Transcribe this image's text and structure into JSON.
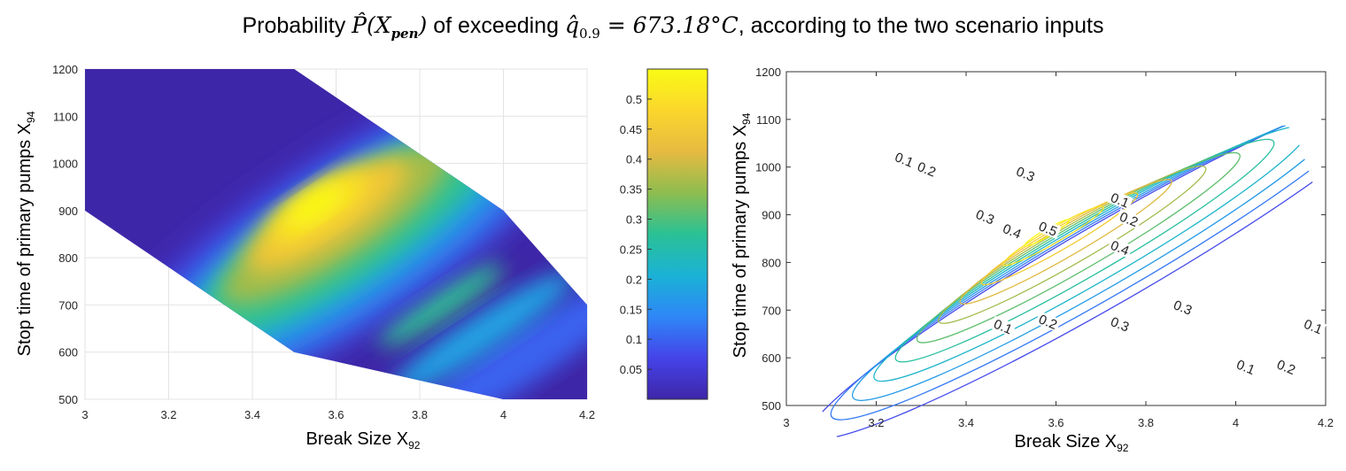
{
  "title": {
    "prefix": "Probability ",
    "p_hat": "P̂",
    "x_base": "X",
    "x_sub": "pen",
    "middle": " of exceeding ",
    "q_hat": "q̂",
    "q_sub": "0.9",
    "equals": " = 673.18°C",
    "suffix": ", according to the two scenario inputs"
  },
  "chart_data": [
    {
      "type": "heatmap",
      "name": "filled probability surface",
      "xlabel": "Break Size X",
      "xlabel_sub": "92",
      "ylabel": "Stop time of primary pumps  X",
      "ylabel_sub": "94",
      "xlim": [
        3,
        4.2
      ],
      "ylim": [
        500,
        1200
      ],
      "xticks": [
        "3",
        "3.2",
        "3.4",
        "3.6",
        "3.8",
        "4",
        "4.2"
      ],
      "yticks": [
        "500",
        "600",
        "700",
        "800",
        "900",
        "1000",
        "1100",
        "1200"
      ],
      "grid": true,
      "domain_polygon": [
        [
          3,
          1200
        ],
        [
          3.5,
          1200
        ],
        [
          4,
          900
        ],
        [
          4.2,
          700
        ],
        [
          4.2,
          500
        ],
        [
          4,
          500
        ],
        [
          3.5,
          600
        ],
        [
          3,
          900
        ]
      ],
      "peak": {
        "x": 3.55,
        "y": 910,
        "value": 0.55
      },
      "colorbar": {
        "range": [
          0,
          0.55
        ],
        "ticks": [
          "0.05",
          "0.1",
          "0.15",
          "0.2",
          "0.25",
          "0.3",
          "0.35",
          "0.4",
          "0.45",
          "0.5"
        ],
        "colormap": [
          "#3e26a8",
          "#4543e9",
          "#2e87f7",
          "#1bb2d6",
          "#2ac195",
          "#8dbd4f",
          "#e7ba41",
          "#fbd62c",
          "#f9fb15"
        ]
      },
      "background_color": "#3e26a8"
    },
    {
      "type": "contour",
      "name": "contour probability lines",
      "xlabel": "Break Size X",
      "xlabel_sub": "92",
      "ylabel": "Stop time of primary pumps  X",
      "ylabel_sub": "94",
      "xlim": [
        3,
        4.2
      ],
      "ylim": [
        500,
        1200
      ],
      "xticks": [
        "3",
        "3.2",
        "3.4",
        "3.6",
        "3.8",
        "4",
        "4.2"
      ],
      "yticks": [
        "500",
        "600",
        "700",
        "800",
        "900",
        "1000",
        "1100",
        "1200"
      ],
      "grid": false,
      "levels": [
        0.05,
        0.1,
        0.15,
        0.2,
        0.25,
        0.3,
        0.35,
        0.4,
        0.45,
        0.5,
        0.55
      ],
      "labels": [
        {
          "text": "0.1",
          "x": 3.26,
          "y": 1010
        },
        {
          "text": "0.2",
          "x": 3.31,
          "y": 990
        },
        {
          "text": "0.3",
          "x": 3.53,
          "y": 980
        },
        {
          "text": "0.1",
          "x": 3.74,
          "y": 925
        },
        {
          "text": "0.2",
          "x": 3.76,
          "y": 885
        },
        {
          "text": "0.3",
          "x": 3.44,
          "y": 890
        },
        {
          "text": "0.4",
          "x": 3.5,
          "y": 860
        },
        {
          "text": "0.5",
          "x": 3.58,
          "y": 865
        },
        {
          "text": "0.4",
          "x": 3.74,
          "y": 825
        },
        {
          "text": "0.1",
          "x": 3.48,
          "y": 660
        },
        {
          "text": "0.2",
          "x": 3.58,
          "y": 670
        },
        {
          "text": "0.3",
          "x": 3.88,
          "y": 700
        },
        {
          "text": "0.3",
          "x": 3.74,
          "y": 665
        },
        {
          "text": "0.1",
          "x": 4.17,
          "y": 660
        },
        {
          "text": "0.2",
          "x": 4.11,
          "y": 575
        },
        {
          "text": "0.1",
          "x": 4.02,
          "y": 575
        }
      ]
    }
  ]
}
